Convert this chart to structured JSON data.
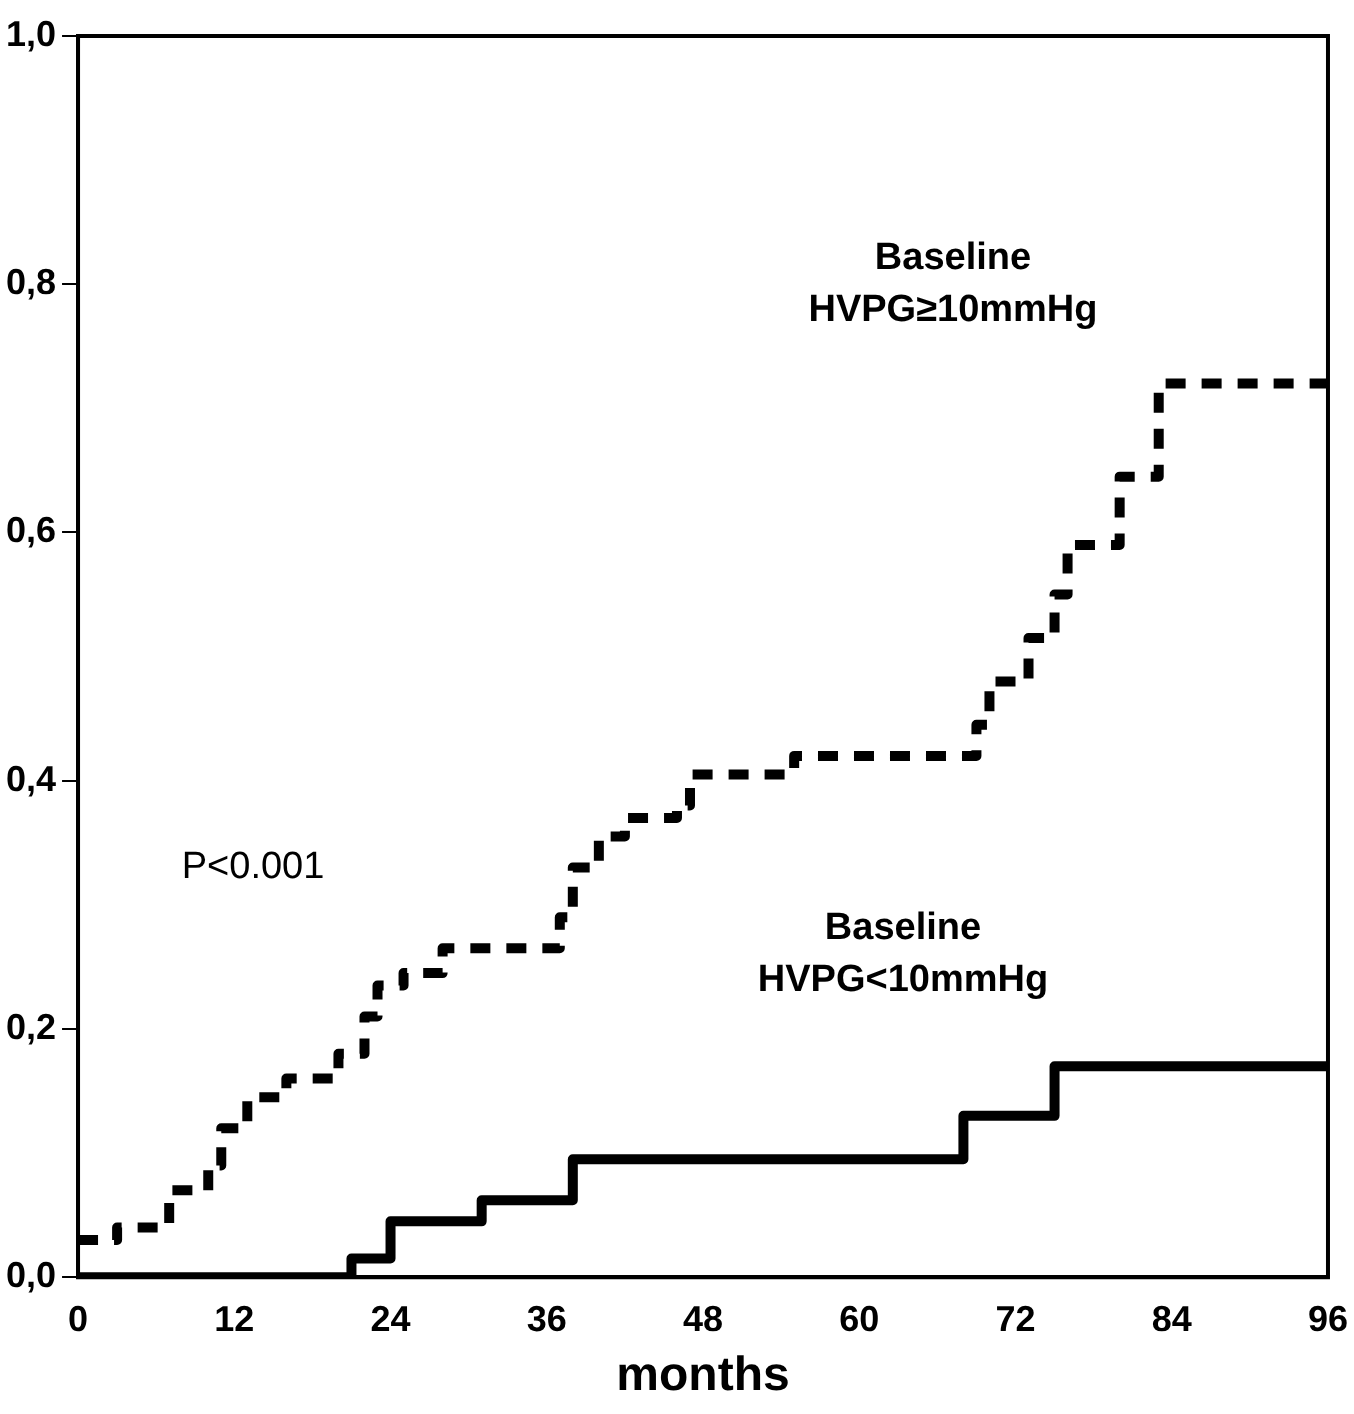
{
  "chart_data": {
    "type": "step",
    "xlabel": "months",
    "legend": false,
    "grid": false,
    "xlim": [
      0,
      96
    ],
    "xticks": [
      0,
      12,
      24,
      36,
      48,
      60,
      72,
      84,
      96
    ],
    "ylim": [
      0,
      1
    ],
    "yticks": [
      {
        "value": 0,
        "label": "0,0"
      },
      {
        "value": 0.2,
        "label": "0,2"
      },
      {
        "value": 0.4,
        "label": "0,4"
      },
      {
        "value": 0.6,
        "label": "0,6"
      },
      {
        "value": 0.8,
        "label": "0,8"
      },
      {
        "value": 1,
        "label": "1,0"
      }
    ],
    "annotations": [
      "P<0.001"
    ],
    "series": [
      {
        "name": "Baseline HVPG≥10mmHg",
        "color": "#000000",
        "line_style": "dashed",
        "x": [
          0,
          3,
          7,
          10,
          11,
          13,
          16,
          20,
          22,
          23,
          25,
          28,
          32,
          37,
          38,
          40,
          42,
          46,
          47,
          55,
          67,
          69,
          70,
          73,
          75,
          76,
          80,
          83,
          96
        ],
        "values": [
          0.03,
          0.04,
          0.07,
          0.09,
          0.12,
          0.145,
          0.16,
          0.18,
          0.21,
          0.235,
          0.245,
          0.265,
          0.265,
          0.29,
          0.33,
          0.355,
          0.37,
          0.38,
          0.405,
          0.42,
          0.42,
          0.445,
          0.48,
          0.515,
          0.55,
          0.59,
          0.645,
          0.72,
          0.72
        ]
      },
      {
        "name": "Baseline HVPG<10mmHg",
        "color": "#000000",
        "line_style": "solid",
        "x": [
          0,
          21,
          24,
          31,
          38,
          68,
          75,
          96
        ],
        "values": [
          0,
          0.015,
          0.045,
          0.062,
          0.095,
          0.13,
          0.17,
          0.17
        ]
      }
    ]
  }
}
